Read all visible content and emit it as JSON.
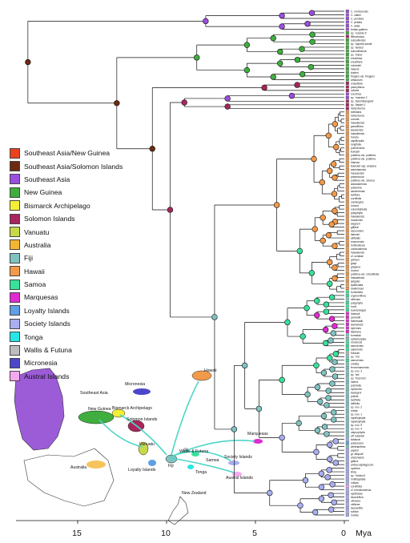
{
  "legend": [
    {
      "label": "Southeast Asia/New Guinea",
      "color": "#e8431e"
    },
    {
      "label": "Southeast Asia/Solomon Islands",
      "color": "#6b2a12"
    },
    {
      "label": "Southeast Asia",
      "color": "#9b4de0"
    },
    {
      "label": "New Guinea",
      "color": "#3fae3f"
    },
    {
      "label": "Bismarck Archipelago",
      "color": "#f4ef35"
    },
    {
      "label": "Solomon Islands",
      "color": "#a8265c"
    },
    {
      "label": "Vanuatu",
      "color": "#c7d948"
    },
    {
      "label": "Australia",
      "color": "#f2b632"
    },
    {
      "label": "Fiji",
      "color": "#7fc3c1"
    },
    {
      "label": "Hawaii",
      "color": "#f39a4a"
    },
    {
      "label": "Samoa",
      "color": "#37e29a"
    },
    {
      "label": "Marquesas",
      "color": "#e12ad0"
    },
    {
      "label": "Loyalty Islands",
      "color": "#5e9fe6"
    },
    {
      "label": "Society Islands",
      "color": "#a8aef0"
    },
    {
      "label": "Tonga",
      "color": "#28e6e6"
    },
    {
      "label": "Wallis & Futuna",
      "color": "#bdbdbd"
    },
    {
      "label": "Micronesia",
      "color": "#4a47c9"
    },
    {
      "label": "Austral Islands",
      "color": "#f3a9ef"
    }
  ],
  "axis": {
    "ticks": [
      15,
      10,
      5,
      0
    ],
    "unit": "Mya"
  },
  "map_labels": {
    "southeast_asia": "Southeast Asia",
    "new_guinea": "New Guinea",
    "bismarck": "Bismarck Archipelago",
    "solomon": "Solomon Islands",
    "micronesia": "Micronesia",
    "hawaii": "Hawaii",
    "vanuatu": "Vanuatu",
    "australia": "Australia",
    "loyalty": "Loyalty Islands",
    "fiji": "Fiji",
    "wallis": "Wallis & Futuna",
    "samoa": "Samoa",
    "tonga": "Tonga",
    "society": "Society Islands",
    "austral": "Austral Islands",
    "marquesas": "Marquesas",
    "new_zealand": "New Zealand"
  },
  "tips": [
    {
      "n": "C. morlocensis",
      "c": "#9b4de0"
    },
    {
      "n": "C. clarkii",
      "c": "#9b4de0"
    },
    {
      "n": "C. pendula",
      "c": "#9b4de0"
    },
    {
      "n": "C. pellata",
      "c": "#9b4de0"
    },
    {
      "n": "C. alata",
      "c": "#9b4de0"
    },
    {
      "n": "fontan-galleno",
      "c": "#9b4de0"
    },
    {
      "n": "sp. 'rosside 3'",
      "c": "#3fae3f"
    },
    {
      "n": "filibocharpa",
      "c": "#a8265c"
    },
    {
      "n": "subsolliensis",
      "c": "#3fae3f"
    },
    {
      "n": "sp. 'sepetik-sands'",
      "c": "#3fae3f"
    },
    {
      "n": "sp. 'landus'",
      "c": "#3fae3f"
    },
    {
      "n": "subcollissima",
      "c": "#3fae3f"
    },
    {
      "n": "sp. 'toksa'",
      "c": "#3fae3f"
    },
    {
      "n": "erectiloba",
      "c": "#3fae3f"
    },
    {
      "n": "erectiflora",
      "c": "#3fae3f"
    },
    {
      "n": "micheleli",
      "c": "#3fae3f"
    },
    {
      "n": "helenis",
      "c": "#3fae3f"
    },
    {
      "n": "koeleri",
      "c": "#3fae3f"
    },
    {
      "n": "fringers var. fringens",
      "c": "#3fae3f"
    },
    {
      "n": "arfacolum",
      "c": "#3fae3f"
    },
    {
      "n": "crassifolia",
      "c": "#a8265c"
    },
    {
      "n": "pachytheca",
      "c": "#a8265c"
    },
    {
      "n": "ovilaris",
      "c": "#a8265c"
    },
    {
      "n": "coccinea",
      "c": "#9b4de0"
    },
    {
      "n": "sp. 'maroise 1'",
      "c": "#9b4de0"
    },
    {
      "n": "sp. 'lasiombangaris'",
      "c": "#a8265c"
    },
    {
      "n": "sp. 'kasiari 1'",
      "c": "#a8265c"
    },
    {
      "n": "heterotrema",
      "c": "#a8265c"
    },
    {
      "n": "stelidana",
      "c": "#f39a4a"
    },
    {
      "n": "lumenicosa",
      "c": "#f39a4a"
    },
    {
      "n": "cocotla",
      "c": "#f39a4a"
    },
    {
      "n": "hawaiiensis",
      "c": "#f39a4a"
    },
    {
      "n": "grandiflora",
      "c": "#f39a4a"
    },
    {
      "n": "kauaiensis",
      "c": "#f39a4a"
    },
    {
      "n": "hawaiiensis",
      "c": "#f39a4a"
    },
    {
      "n": "honolu",
      "c": "#f39a4a"
    },
    {
      "n": "capillicaulis",
      "c": "#f39a4a"
    },
    {
      "n": "longifolia",
      "c": "#f39a4a"
    },
    {
      "n": "pulcherrima",
      "c": "#f39a4a"
    },
    {
      "n": "kuwasii",
      "c": "#f39a4a"
    },
    {
      "n": "pubifera var. pubifera",
      "c": "#f39a4a"
    },
    {
      "n": "pubifera var. pubifera",
      "c": "#f39a4a"
    },
    {
      "n": "elamaa",
      "c": "#f39a4a"
    },
    {
      "n": "teleioleri ssp. anaclea",
      "c": "#f39a4a"
    },
    {
      "n": "waimhaensis",
      "c": "#f39a4a"
    },
    {
      "n": "hausaensis",
      "c": "#f39a4a"
    },
    {
      "n": "praemonue",
      "c": "#f39a4a"
    },
    {
      "n": "pubifera var. cinerea",
      "c": "#f39a4a"
    },
    {
      "n": "waianaeensis",
      "c": "#f39a4a"
    },
    {
      "n": "pubenhia",
      "c": "#f39a4a"
    },
    {
      "n": "sanderensis",
      "c": "#f39a4a"
    },
    {
      "n": "laxiflora",
      "c": "#f39a4a"
    },
    {
      "n": "cordifolia",
      "c": "#f39a4a"
    },
    {
      "n": "orpheogha",
      "c": "#f39a4a"
    },
    {
      "n": "munroi",
      "c": "#f39a4a"
    },
    {
      "n": "columbabiolia",
      "c": "#f39a4a"
    },
    {
      "n": "polyphylla",
      "c": "#f39a4a"
    },
    {
      "n": "hawaiiensis",
      "c": "#f39a4a"
    },
    {
      "n": "mauiensis",
      "c": "#f39a4a"
    },
    {
      "n": "wagneri",
      "c": "#f39a4a"
    },
    {
      "n": "giffardi",
      "c": "#f39a4a"
    },
    {
      "n": "ascendulor",
      "c": "#f39a4a"
    },
    {
      "n": "lalenieri",
      "c": "#f39a4a"
    },
    {
      "n": "albidalis",
      "c": "#f39a4a"
    },
    {
      "n": "ensenensis",
      "c": "#f39a4a"
    },
    {
      "n": "tortimalicula",
      "c": "#f39a4a"
    },
    {
      "n": "oceanalemsis",
      "c": "#f39a4a"
    },
    {
      "n": "hawaiiensis",
      "c": "#f39a4a"
    },
    {
      "n": "cf. schalae",
      "c": "#f39a4a"
    },
    {
      "n": "grimesi",
      "c": "#f39a4a"
    },
    {
      "n": "grayi",
      "c": "#f39a4a"
    },
    {
      "n": "grayana",
      "c": "#f39a4a"
    },
    {
      "n": "munroi",
      "c": "#f39a4a"
    },
    {
      "n": "pubifera var. rotundifolia",
      "c": "#f39a4a"
    },
    {
      "n": "hawaiiensis",
      "c": "#f39a4a"
    },
    {
      "n": "lydgatei",
      "c": "#f39a4a"
    },
    {
      "n": "spathulata",
      "c": "#f39a4a"
    },
    {
      "n": "lowlinimoui",
      "c": "#f39a4a"
    },
    {
      "n": "fornisifolia",
      "c": "#37e29a"
    },
    {
      "n": "cryptomiflora",
      "c": "#37e29a"
    },
    {
      "n": "vitiensis",
      "c": "#7fc3c1"
    },
    {
      "n": "polyphylla",
      "c": "#37e29a"
    },
    {
      "n": "rochi",
      "c": "#37e29a"
    },
    {
      "n": "suavicolagus",
      "c": "#37e29a"
    },
    {
      "n": "dubiusii",
      "c": "#e12ad0"
    },
    {
      "n": "pennellii",
      "c": "#e12ad0"
    },
    {
      "n": "taimeraalii",
      "c": "#e12ad0"
    },
    {
      "n": "lavinamsis",
      "c": "#e12ad0"
    },
    {
      "n": "cylennes",
      "c": "#e12ad0"
    },
    {
      "n": "fiabriana",
      "c": "#e12ad0"
    },
    {
      "n": "forrestali",
      "c": "#7fc3c1"
    },
    {
      "n": "ephlahorpaia",
      "c": "#7fc3c1"
    },
    {
      "n": "monensis",
      "c": "#37e29a"
    },
    {
      "n": "samoensis",
      "c": "#37e29a"
    },
    {
      "n": "salamonis",
      "c": "#37e29a"
    },
    {
      "n": "futunae",
      "c": "#bdbdbd"
    },
    {
      "n": "sp. 'mo'",
      "c": "#7fc3c1"
    },
    {
      "n": "samoensis",
      "c": "#37e29a"
    },
    {
      "n": "undata",
      "c": "#7fc3c1"
    },
    {
      "n": "fenovimanensis",
      "c": "#7fc3c1"
    },
    {
      "n": "sp. nov. 3",
      "c": "#7fc3c1"
    },
    {
      "n": "sp. 'tva'",
      "c": "#7fc3c1"
    },
    {
      "n": "sp. 'froa fons'",
      "c": "#7fc3c1"
    },
    {
      "n": "ralena",
      "c": "#7fc3c1"
    },
    {
      "n": "pulchella",
      "c": "#7fc3c1"
    },
    {
      "n": "cyrtandra",
      "c": "#7fc3c1"
    },
    {
      "n": "tavaiqeni",
      "c": "#7fc3c1"
    },
    {
      "n": "pullotii",
      "c": "#7fc3c1"
    },
    {
      "n": "lactifolia",
      "c": "#7fc3c1"
    },
    {
      "n": "latiifolia",
      "c": "#7fc3c1"
    },
    {
      "n": "sp. nov. 2",
      "c": "#7fc3c1"
    },
    {
      "n": "rufata",
      "c": "#7fc3c1"
    },
    {
      "n": "sp. nov. 1",
      "c": "#7fc3c1"
    },
    {
      "n": "rayellophylla",
      "c": "#7fc3c1"
    },
    {
      "n": "rayellophylla",
      "c": "#7fc3c1"
    },
    {
      "n": "sp. nov. 5",
      "c": "#7fc3c1"
    },
    {
      "n": "sp. nov. 4",
      "c": "#7fc3c1"
    },
    {
      "n": "calprophylla",
      "c": "#7fc3c1"
    },
    {
      "n": "aff. balandii",
      "c": "#7fc3c1"
    },
    {
      "n": "tahaurai",
      "c": "#a8aef0"
    },
    {
      "n": "pubescens",
      "c": "#5e9fe6"
    },
    {
      "n": "whiteianthes",
      "c": "#7fc3c1"
    },
    {
      "n": "papesi",
      "c": "#a8aef0"
    },
    {
      "n": "gr. farquali",
      "c": "#a8aef0"
    },
    {
      "n": "cheismanis",
      "c": "#a8aef0"
    },
    {
      "n": "glabra",
      "c": "#a8aef0"
    },
    {
      "n": "anthocuspilagocum",
      "c": "#a8aef0"
    },
    {
      "n": "cyathea",
      "c": "#a8aef0"
    },
    {
      "n": "linda",
      "c": "#a8aef0"
    },
    {
      "n": "sp. 'hodsoni'",
      "c": "#a8aef0"
    },
    {
      "n": "multisquilata",
      "c": "#a8aef0"
    },
    {
      "n": "nuilaia",
      "c": "#a8aef0"
    },
    {
      "n": "cordiifolia",
      "c": "#f3a9ef"
    },
    {
      "n": "cf. hendicusensis",
      "c": "#a8aef0"
    },
    {
      "n": "apolliosae",
      "c": "#a8aef0"
    },
    {
      "n": "lacustrifica",
      "c": "#a8aef0"
    },
    {
      "n": "olivacea",
      "c": "#a8aef0"
    },
    {
      "n": "obtiicea",
      "c": "#a8aef0"
    },
    {
      "n": "lacuianfita",
      "c": "#a8aef0"
    },
    {
      "n": "solitari",
      "c": "#a8aef0"
    },
    {
      "n": "moritei",
      "c": "#a8aef0"
    }
  ]
}
